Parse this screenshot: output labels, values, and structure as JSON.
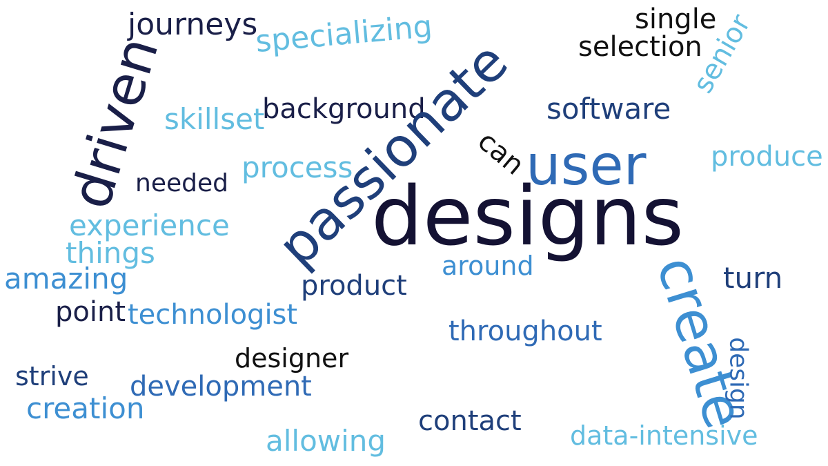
{
  "palette": {
    "navy": "#1a1f48",
    "dark_blue": "#1f3f7a",
    "medium_blue": "#2f6ab5",
    "bright_blue": "#3d8fd2",
    "light_blue": "#62bde0",
    "black": "#111111"
  },
  "words": [
    {
      "id": "journeys",
      "text": "journeys",
      "color": "#1a1f48"
    },
    {
      "id": "specializing",
      "text": "specializing",
      "color": "#62bde0"
    },
    {
      "id": "single",
      "text": "single",
      "color": "#111111"
    },
    {
      "id": "selection",
      "text": "selection",
      "color": "#111111"
    },
    {
      "id": "senior",
      "text": "senior",
      "color": "#62bde0"
    },
    {
      "id": "driven",
      "text": "driven",
      "color": "#1a1f48"
    },
    {
      "id": "skillset",
      "text": "skillset",
      "color": "#62bde0"
    },
    {
      "id": "background",
      "text": "background",
      "color": "#1a1f48"
    },
    {
      "id": "passionate",
      "text": "passionate",
      "color": "#1f3f7a"
    },
    {
      "id": "software",
      "text": "software",
      "color": "#1f3f7a"
    },
    {
      "id": "can",
      "text": "can",
      "color": "#111111"
    },
    {
      "id": "user",
      "text": "user",
      "color": "#2f6ab5"
    },
    {
      "id": "produce",
      "text": "produce",
      "color": "#62bde0"
    },
    {
      "id": "needed",
      "text": "needed",
      "color": "#1a1f48"
    },
    {
      "id": "process",
      "text": "process",
      "color": "#62bde0"
    },
    {
      "id": "designs",
      "text": "designs",
      "color": "#141233"
    },
    {
      "id": "experience",
      "text": "experience",
      "color": "#62bde0"
    },
    {
      "id": "things",
      "text": "things",
      "color": "#62bde0"
    },
    {
      "id": "around",
      "text": "around",
      "color": "#3d8fd2"
    },
    {
      "id": "amazing",
      "text": "amazing",
      "color": "#3d8fd2"
    },
    {
      "id": "product",
      "text": "product",
      "color": "#1f3f7a"
    },
    {
      "id": "create",
      "text": "create",
      "color": "#3d8fd2"
    },
    {
      "id": "turn",
      "text": "turn",
      "color": "#1f3f7a"
    },
    {
      "id": "point",
      "text": "point",
      "color": "#1a1f48"
    },
    {
      "id": "technologist",
      "text": "technologist",
      "color": "#3d8fd2"
    },
    {
      "id": "throughout",
      "text": "throughout",
      "color": "#2f6ab5"
    },
    {
      "id": "designer",
      "text": "designer",
      "color": "#111111"
    },
    {
      "id": "design",
      "text": "design",
      "color": "#2f6ab5"
    },
    {
      "id": "strive",
      "text": "strive",
      "color": "#1f3f7a"
    },
    {
      "id": "development",
      "text": "development",
      "color": "#2f6ab5"
    },
    {
      "id": "creation",
      "text": "creation",
      "color": "#3d8fd2"
    },
    {
      "id": "contact",
      "text": "contact",
      "color": "#1f3f7a"
    },
    {
      "id": "allowing",
      "text": "allowing",
      "color": "#62bde0"
    },
    {
      "id": "data-intensive",
      "text": "data-intensive",
      "color": "#62bde0"
    }
  ]
}
